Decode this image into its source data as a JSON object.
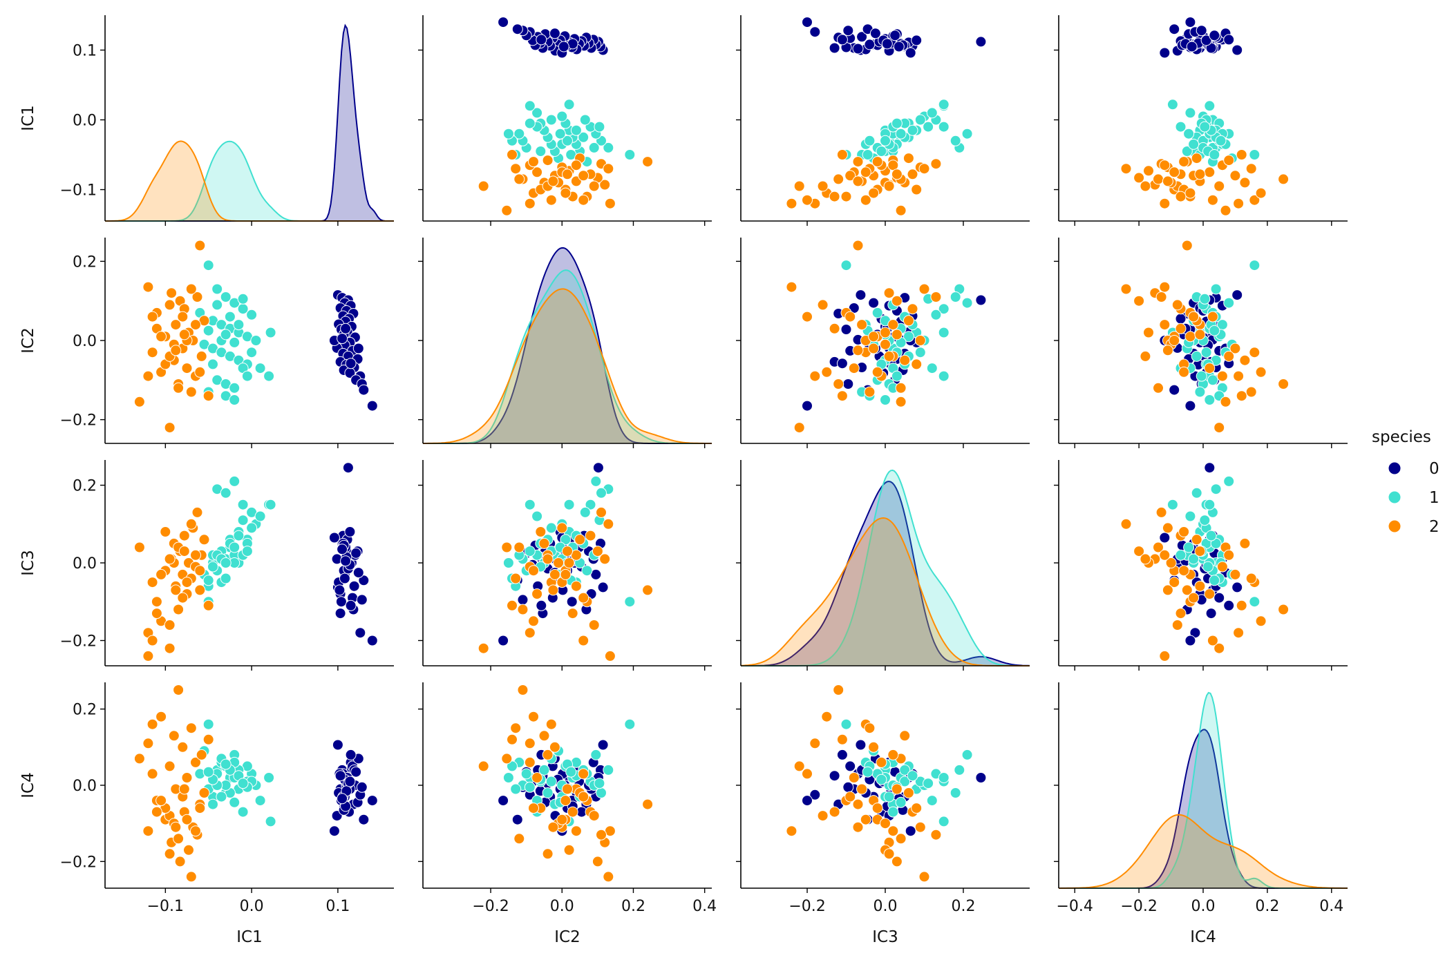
{
  "chart_data": {
    "type": "scatter",
    "kind": "pairplot",
    "variables": [
      "IC1",
      "IC2",
      "IC3",
      "IC4"
    ],
    "hue_title": "species",
    "legend_placement": "center-right",
    "grid": false,
    "diagonal_type": "kde",
    "axes": {
      "IC1": {
        "lim": [
          -0.17,
          0.165
        ],
        "ticks": [
          -0.1,
          0.0,
          0.1
        ],
        "tick_labels": [
          "−0.1",
          "0.0",
          "0.1"
        ]
      },
      "IC2": {
        "lim": [
          -0.39,
          0.42
        ],
        "ticks": [
          -0.2,
          0.0,
          0.2,
          0.4
        ],
        "tick_labels": [
          "−0.2",
          "0.0",
          "0.2",
          "0.4"
        ]
      },
      "IC3": {
        "lim": [
          -0.37,
          0.37
        ],
        "ticks": [
          -0.2,
          0.0,
          0.2
        ],
        "tick_labels": [
          "−0.2",
          "0.0",
          "0.2"
        ]
      },
      "IC4": {
        "lim": [
          -0.45,
          0.45
        ],
        "ticks": [
          -0.4,
          -0.2,
          0.0,
          0.2,
          0.4
        ],
        "tick_labels": [
          "−0.4",
          "−0.2",
          "0.0",
          "0.2",
          "0.4"
        ]
      }
    },
    "row_axes": {
      "IC1": {
        "lim": [
          -0.145,
          0.15
        ],
        "ticks": [
          -0.1,
          0.0,
          0.1
        ],
        "tick_labels": [
          "−0.1",
          "0.0",
          "0.1"
        ]
      },
      "IC2": {
        "lim": [
          -0.26,
          0.26
        ],
        "ticks": [
          -0.2,
          0.0,
          0.2
        ],
        "tick_labels": [
          "−0.2",
          "0.0",
          "0.2"
        ]
      },
      "IC3": {
        "lim": [
          -0.265,
          0.265
        ],
        "ticks": [
          -0.2,
          0.0,
          0.2
        ],
        "tick_labels": [
          "−0.2",
          "0.0",
          "0.2"
        ]
      },
      "IC4": {
        "lim": [
          -0.27,
          0.27
        ],
        "ticks": [
          -0.2,
          0.0,
          0.2
        ],
        "tick_labels": [
          "−0.2",
          "0.0",
          "0.2"
        ]
      }
    },
    "series": [
      {
        "name": "0",
        "color": "#00008b",
        "points": [
          [
            0.1,
            0.115,
            -0.063,
            0.106
          ],
          [
            0.105,
            0.108,
            0.05,
            0.04
          ],
          [
            0.112,
            0.102,
            0.245,
            0.02
          ],
          [
            0.108,
            0.095,
            -0.03,
            -0.03
          ],
          [
            0.115,
            0.088,
            0.01,
            0.06
          ],
          [
            0.103,
            0.082,
            -0.08,
            -0.01
          ],
          [
            0.11,
            0.075,
            0.03,
            0.0
          ],
          [
            0.118,
            0.068,
            -0.12,
            -0.05
          ],
          [
            0.106,
            0.062,
            0.07,
            0.03
          ],
          [
            0.113,
            0.055,
            -0.01,
            -0.07
          ],
          [
            0.109,
            0.048,
            0.04,
            0.01
          ],
          [
            0.101,
            0.041,
            -0.05,
            -0.02
          ],
          [
            0.116,
            0.035,
            0.0,
            0.045
          ],
          [
            0.104,
            0.028,
            -0.1,
            -0.04
          ],
          [
            0.111,
            0.021,
            0.06,
            0.02
          ],
          [
            0.107,
            0.015,
            -0.02,
            -0.06
          ],
          [
            0.12,
            0.008,
            0.02,
            0.0
          ],
          [
            0.102,
            0.002,
            -0.07,
            0.03
          ],
          [
            0.114,
            -0.005,
            0.08,
            -0.01
          ],
          [
            0.108,
            -0.012,
            -0.04,
            0.015
          ],
          [
            0.099,
            -0.019,
            0.01,
            -0.08
          ],
          [
            0.117,
            -0.026,
            -0.09,
            0.05
          ],
          [
            0.106,
            -0.033,
            0.05,
            -0.03
          ],
          [
            0.112,
            -0.04,
            -0.015,
            0.005
          ],
          [
            0.123,
            -0.047,
            0.03,
            -0.045
          ],
          [
            0.103,
            -0.054,
            -0.13,
            0.025
          ],
          [
            0.11,
            -0.061,
            0.015,
            -0.015
          ],
          [
            0.119,
            -0.068,
            -0.06,
            0.04
          ],
          [
            0.107,
            -0.075,
            0.045,
            -0.065
          ],
          [
            0.114,
            -0.082,
            -0.005,
            0.01
          ],
          [
            0.126,
            -0.09,
            -0.18,
            -0.025
          ],
          [
            0.121,
            -0.1,
            0.025,
            0.035
          ],
          [
            0.128,
            -0.11,
            -0.095,
            -0.005
          ],
          [
            0.13,
            -0.125,
            -0.045,
            -0.09
          ],
          [
            0.14,
            -0.165,
            -0.2,
            -0.04
          ],
          [
            0.096,
            0.0,
            0.065,
            -0.12
          ],
          [
            0.124,
            -0.02,
            -0.025,
            0.07
          ],
          [
            0.109,
            0.03,
            0.005,
            -0.055
          ],
          [
            0.115,
            -0.058,
            -0.11,
            0.08
          ],
          [
            0.105,
            0.005,
            0.035,
            -0.035
          ]
        ]
      },
      {
        "name": "1",
        "color": "#40e0d0",
        "points": [
          [
            -0.05,
            0.19,
            -0.1,
            0.16
          ],
          [
            -0.04,
            0.13,
            0.19,
            0.04
          ],
          [
            -0.03,
            0.11,
            0.18,
            -0.02
          ],
          [
            -0.02,
            0.095,
            0.21,
            0.08
          ],
          [
            -0.01,
            0.08,
            0.15,
            0.01
          ],
          [
            0.0,
            0.065,
            0.13,
            0.03
          ],
          [
            -0.045,
            0.05,
            0.0,
            -0.03
          ],
          [
            -0.035,
            0.04,
            -0.05,
            0.06
          ],
          [
            -0.025,
            0.03,
            0.04,
            0.02
          ],
          [
            -0.015,
            0.02,
            0.08,
            -0.01
          ],
          [
            -0.005,
            0.01,
            0.06,
            0.05
          ],
          [
            0.005,
            0.0,
            0.1,
            0.0
          ],
          [
            -0.055,
            -0.01,
            -0.03,
            0.09
          ],
          [
            -0.045,
            -0.02,
            0.02,
            -0.05
          ],
          [
            -0.035,
            -0.03,
            0.03,
            0.07
          ],
          [
            -0.025,
            -0.04,
            0.06,
            -0.02
          ],
          [
            -0.015,
            -0.05,
            0.0,
            0.04
          ],
          [
            -0.005,
            -0.06,
            0.05,
            0.01
          ],
          [
            0.01,
            -0.07,
            0.12,
            -0.04
          ],
          [
            0.02,
            -0.09,
            0.15,
            0.02
          ],
          [
            -0.04,
            -0.1,
            -0.02,
            0.03
          ],
          [
            -0.03,
            -0.11,
            0.01,
            0.0
          ],
          [
            -0.02,
            -0.12,
            0.02,
            0.06
          ],
          [
            -0.05,
            -0.13,
            -0.06,
            -0.01
          ],
          [
            -0.03,
            -0.14,
            -0.04,
            0.05
          ],
          [
            -0.02,
            -0.15,
            0.0,
            0.02
          ],
          [
            -0.01,
            -0.07,
            0.02,
            -0.07
          ],
          [
            0.0,
            -0.03,
            0.09,
            0.01
          ],
          [
            -0.06,
            0.07,
            -0.02,
            0.03
          ],
          [
            -0.04,
            0.09,
            0.02,
            0.0
          ],
          [
            -0.025,
            0.06,
            0.05,
            0.04
          ],
          [
            -0.035,
            0.0,
            0.01,
            -0.03
          ],
          [
            0.022,
            0.02,
            0.15,
            -0.095
          ],
          [
            -0.015,
            0.04,
            0.07,
            0.025
          ],
          [
            -0.045,
            -0.06,
            -0.01,
            0.015
          ],
          [
            -0.005,
            -0.09,
            0.03,
            -0.005
          ],
          [
            -0.03,
            0.015,
            0.0,
            0.055
          ],
          [
            -0.02,
            -0.005,
            0.04,
            -0.045
          ],
          [
            -0.01,
            0.105,
            0.11,
            0.005
          ],
          [
            -0.05,
            0.025,
            -0.045,
            0.035
          ]
        ]
      },
      {
        "name": "2",
        "color": "#ff8c00",
        "points": [
          [
            -0.13,
            -0.155,
            0.04,
            0.07
          ],
          [
            -0.12,
            0.135,
            -0.24,
            -0.12
          ],
          [
            -0.115,
            -0.03,
            -0.05,
            0.16
          ],
          [
            -0.11,
            0.07,
            -0.1,
            -0.04
          ],
          [
            -0.105,
            -0.08,
            -0.15,
            0.18
          ],
          [
            -0.1,
            0.01,
            -0.02,
            -0.09
          ],
          [
            -0.095,
            -0.22,
            -0.22,
            0.05
          ],
          [
            -0.093,
            0.12,
            0.01,
            -0.15
          ],
          [
            -0.09,
            -0.05,
            0.05,
            0.13
          ],
          [
            -0.088,
            0.04,
            -0.06,
            -0.01
          ],
          [
            -0.085,
            -0.11,
            -0.12,
            0.25
          ],
          [
            -0.083,
            0.1,
            0.03,
            -0.2
          ],
          [
            -0.08,
            -0.02,
            -0.03,
            0.1
          ],
          [
            -0.078,
            0.08,
            0.07,
            -0.07
          ],
          [
            -0.075,
            -0.07,
            -0.08,
            0.02
          ],
          [
            -0.073,
            0.02,
            0.0,
            -0.17
          ],
          [
            -0.07,
            -0.13,
            -0.04,
            0.15
          ],
          [
            -0.068,
            0.0,
            0.09,
            -0.11
          ],
          [
            -0.065,
            -0.09,
            -0.01,
            0.06
          ],
          [
            -0.063,
            0.11,
            0.13,
            -0.13
          ],
          [
            -0.06,
            0.24,
            -0.07,
            -0.05
          ],
          [
            -0.058,
            -0.04,
            0.02,
            0.08
          ],
          [
            -0.055,
            0.05,
            0.06,
            -0.02
          ],
          [
            -0.05,
            -0.14,
            -0.11,
            0.12
          ],
          [
            -0.07,
            0.13,
            0.1,
            -0.24
          ],
          [
            -0.095,
            0.09,
            -0.16,
            -0.08
          ],
          [
            -0.1,
            -0.06,
            0.08,
            -0.06
          ],
          [
            -0.08,
            0.06,
            -0.09,
            -0.03
          ],
          [
            -0.09,
            -0.01,
            0.0,
            -0.1
          ],
          [
            -0.11,
            0.03,
            -0.13,
            -0.07
          ],
          [
            -0.085,
            -0.12,
            0.04,
            -0.14
          ],
          [
            -0.075,
            0.0,
            -0.05,
            -0.09
          ],
          [
            -0.12,
            -0.09,
            -0.18,
            0.11
          ],
          [
            -0.065,
            0.04,
            0.02,
            -0.12
          ],
          [
            -0.105,
            0.01,
            -0.03,
            -0.04
          ],
          [
            -0.095,
            -0.04,
            0.01,
            -0.18
          ],
          [
            -0.06,
            -0.08,
            -0.02,
            -0.06
          ],
          [
            -0.078,
            0.015,
            0.03,
            -0.01
          ],
          [
            -0.088,
            -0.025,
            -0.07,
            -0.11
          ],
          [
            -0.115,
            0.06,
            -0.2,
            0.03
          ]
        ]
      }
    ]
  }
}
